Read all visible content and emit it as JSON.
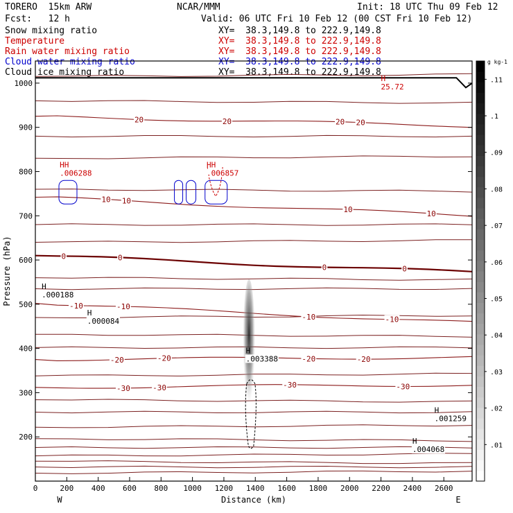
{
  "header": {
    "model": "TORERO  15km ARW",
    "org": "NCAR/MMM",
    "init": "Init: 18 UTC Thu 09 Feb 12",
    "fcst": "Fcst:   12 h",
    "valid": "Valid: 06 UTC Fri 10 Feb 12 (00 CST Fri 10 Feb 12)"
  },
  "fields": [
    {
      "name": "Snow mixing ratio",
      "xy": "XY=  38.3,149.8 to 222.9,149.8",
      "color": "#000000"
    },
    {
      "name": "Temperature",
      "xy": "XY=  38.3,149.8 to 222.9,149.8",
      "color": "#cc0000"
    },
    {
      "name": "Rain water mixing ratio",
      "xy": "XY=  38.3,149.8 to 222.9,149.8",
      "color": "#cc0000"
    },
    {
      "name": "Cloud water mixing ratio",
      "xy": "XY=  38.3,149.8 to 222.9,149.8",
      "color": "#0000cc"
    },
    {
      "name": "Cloud ice mixing ratio",
      "xy": "XY=  38.3,149.8 to 222.9,149.8",
      "color": "#000000"
    }
  ],
  "chart_data": {
    "type": "cross-section contour",
    "xlabel": "Distance (km)",
    "ylabel": "Pressure (hPa)",
    "xlim": [
      0,
      2780
    ],
    "ylim": [
      1050,
      100
    ],
    "x_ticks": [
      0,
      200,
      400,
      600,
      800,
      1000,
      1200,
      1400,
      1600,
      1800,
      2000,
      2200,
      2400,
      2600
    ],
    "y_ticks": [
      200,
      300,
      400,
      500,
      600,
      700,
      800,
      900,
      1000
    ],
    "x_end_labels": {
      "left": "W",
      "right": "E"
    },
    "colorbar": {
      "unit": "g kg-1",
      "ticks": [
        ".01",
        ".02",
        ".03",
        ".04",
        ".05",
        ".06",
        ".07",
        ".08",
        ".09",
        ".1",
        ".11"
      ],
      "range": [
        0,
        0.115
      ],
      "colors": [
        "#ffffff",
        "#000000"
      ]
    },
    "temperature_isotherms": [
      {
        "label": "-30",
        "p_left": 312,
        "p_right": 318,
        "label_x": [
          560,
          790,
          1620,
          2340
        ]
      },
      {
        "label": "-20",
        "p_left": 375,
        "p_right": 380,
        "label_x": [
          520,
          820,
          1740,
          2090
        ]
      },
      {
        "label": "-10",
        "p_left": 502,
        "p_right": 458,
        "label_x": [
          260,
          560,
          1740,
          2270
        ]
      },
      {
        "label": "0",
        "p_left": 610,
        "p_right": 572,
        "label_x": [
          180,
          540,
          1840,
          2350
        ]
      },
      {
        "label": "10",
        "p_left": 742,
        "p_right": 700,
        "label_x": [
          450,
          580,
          1990,
          2520
        ]
      },
      {
        "label": "20",
        "p_left": 925,
        "p_right": 903,
        "label_x": [
          660,
          1220,
          1940,
          2070
        ]
      }
    ],
    "extrema_labels": [
      {
        "text": "H",
        "value": ".004068",
        "x": 2400,
        "p": 175,
        "color": "#000000"
      },
      {
        "text": "H",
        "value": ".001259",
        "x": 2540,
        "p": 245,
        "color": "#000000"
      },
      {
        "text": "H",
        "value": ".003388",
        "x": 1340,
        "p": 380,
        "color": "#000000"
      },
      {
        "text": "H",
        "value": ".000084",
        "x": 330,
        "p": 465,
        "color": "#000000"
      },
      {
        "text": "H",
        "value": ".000188",
        "x": 40,
        "p": 525,
        "color": "#000000"
      },
      {
        "text": "HH",
        "value": ".006288",
        "x": 155,
        "p": 800,
        "color": "#cc0000"
      },
      {
        "text": "HH",
        "value": ".006857",
        "x": 1090,
        "p": 800,
        "color": "#cc0000"
      },
      {
        "text": "H",
        "value": "25.72",
        "x": 2200,
        "p": 995,
        "color": "#cc0000"
      }
    ]
  }
}
